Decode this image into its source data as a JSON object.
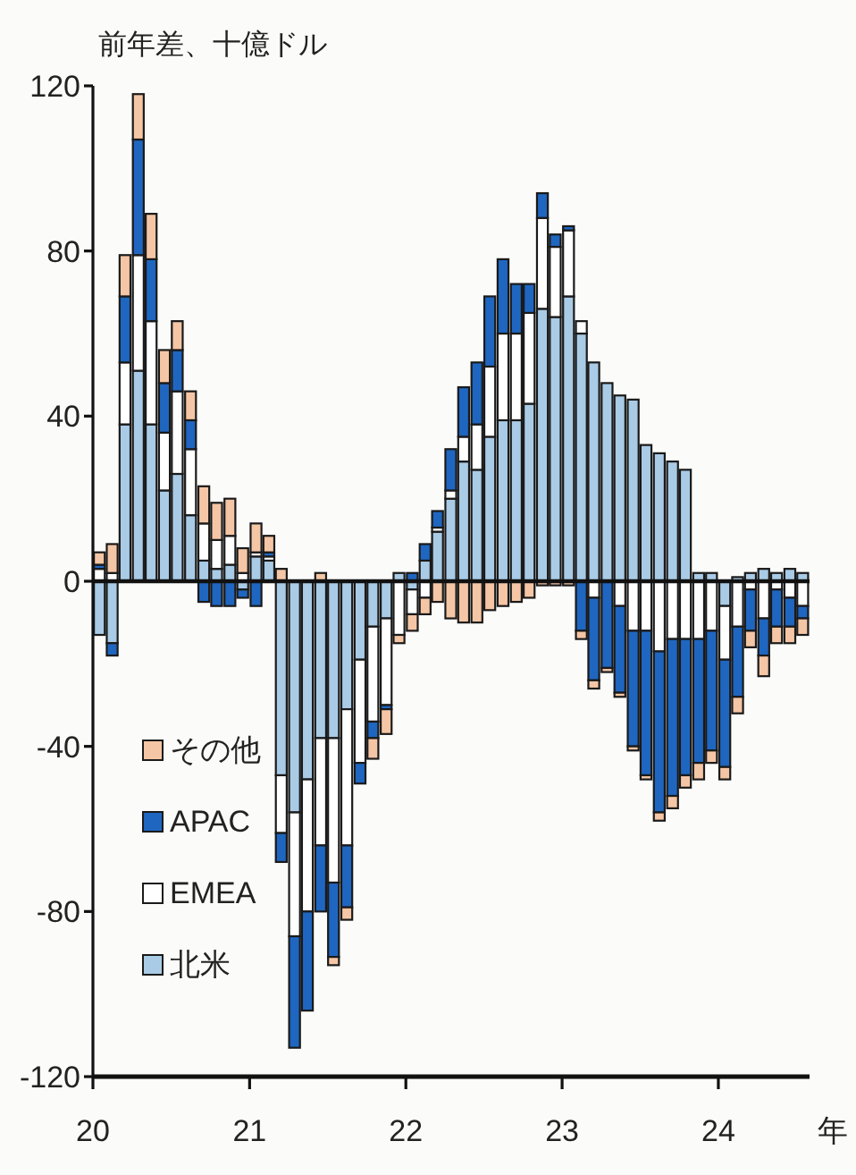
{
  "chart_data": {
    "type": "bar",
    "stacked": true,
    "ylabel": "前年差、十億ドル",
    "xlabel": "年",
    "x": [
      "2020-01-16",
      "2020-02-15",
      "2020-03-16",
      "2020-04-16",
      "2020-05-16",
      "2020-06-16",
      "2020-07-16",
      "2020-08-16",
      "2020-09-16",
      "2020-10-16",
      "2020-11-16",
      "2020-12-16",
      "2021-01-16",
      "2021-02-15",
      "2021-03-16",
      "2021-04-16",
      "2021-05-16",
      "2021-06-16",
      "2021-07-16",
      "2021-08-16",
      "2021-09-16",
      "2021-10-16",
      "2021-11-16",
      "2021-12-16",
      "2022-01-16",
      "2022-02-15",
      "2022-03-16",
      "2022-04-16",
      "2022-05-16",
      "2022-06-16",
      "2022-07-16",
      "2022-08-16",
      "2022-09-16",
      "2022-10-16",
      "2022-11-16",
      "2022-12-16",
      "2023-01-16",
      "2023-02-15",
      "2023-03-16",
      "2023-04-16",
      "2023-05-16",
      "2023-06-16",
      "2023-07-16",
      "2023-08-16",
      "2023-09-16",
      "2023-10-16",
      "2023-11-16",
      "2023-12-16",
      "2024-01-16",
      "2024-02-15",
      "2024-03-16",
      "2024-04-16",
      "2024-05-16",
      "2024-06-16",
      "2024-07-16"
    ],
    "series": [
      {
        "name": "北米",
        "color": "#a9cbe6",
        "values": [
          -13,
          -15,
          38,
          51,
          38,
          22,
          26,
          16,
          5,
          3,
          4,
          -2,
          6,
          5,
          -47,
          -56,
          -48,
          -38,
          -38,
          -31,
          -19,
          -11,
          -9,
          2,
          -2,
          5,
          12,
          20,
          29,
          27,
          35,
          39,
          39,
          43,
          66,
          64,
          69,
          60,
          53,
          48,
          45,
          44,
          33,
          31,
          29,
          27,
          2,
          2,
          -6,
          1,
          2,
          3,
          2,
          3,
          2
        ]
      },
      {
        "name": "EMEA",
        "color": "#ffffff",
        "values": [
          3,
          2,
          15,
          28,
          25,
          14,
          20,
          16,
          9,
          7,
          7,
          2,
          1,
          1,
          -14,
          -30,
          -32,
          -26,
          -35,
          -33,
          -25,
          -23,
          -21,
          -13,
          -6,
          -4,
          1,
          2,
          6,
          11,
          17,
          21,
          21,
          22,
          22,
          17,
          16,
          3,
          -4,
          0,
          -6,
          -12,
          -12,
          -17,
          -14,
          -14,
          -14,
          -12,
          -13,
          -11,
          -2,
          -9,
          -2,
          -4,
          -6
        ]
      },
      {
        "name": "APAC",
        "color": "#1f66c0",
        "values": [
          1,
          -3,
          16,
          28,
          15,
          12,
          10,
          7,
          -5,
          -6,
          -6,
          -2,
          -6,
          1,
          -7,
          -27,
          -24,
          -16,
          -18,
          -15,
          -5,
          -4,
          -1,
          0,
          2,
          4,
          4,
          10,
          12,
          15,
          17,
          18,
          12,
          7,
          6,
          3,
          1,
          -12,
          -20,
          -21,
          -21,
          -28,
          -35,
          -39,
          -38,
          -33,
          -30,
          -29,
          -26,
          -17,
          -10,
          -9,
          -9,
          -7,
          -3
        ]
      },
      {
        "name": "その他",
        "color": "#f5c6a5",
        "values": [
          3,
          7,
          10,
          11,
          11,
          8,
          7,
          7,
          9,
          9,
          9,
          6,
          7,
          4,
          3,
          0,
          0,
          2,
          -2,
          -3,
          0,
          -5,
          -6,
          -2,
          -4,
          -4,
          -5,
          -9,
          -10,
          -10,
          -7,
          -6,
          -5,
          -4,
          -1,
          -1,
          -1,
          -2,
          -2,
          -1,
          -1,
          -1,
          -1,
          -2,
          -3,
          -3,
          -4,
          -3,
          -3,
          -4,
          -4,
          -5,
          -4,
          -4,
          -4
        ]
      }
    ],
    "xlim": [
      "2020-01-01",
      "2024-08-01"
    ],
    "xticks": [
      {
        "value": "2020-01-01",
        "label": "20"
      },
      {
        "value": "2021-01-01",
        "label": "21"
      },
      {
        "value": "2022-01-01",
        "label": "22"
      },
      {
        "value": "2023-01-01",
        "label": "23"
      },
      {
        "value": "2024-01-01",
        "label": "24"
      }
    ],
    "ylim": [
      -120,
      120
    ],
    "yticks": [
      -120,
      -80,
      -40,
      0,
      40,
      80,
      120
    ],
    "ref_lines": [
      {
        "axis": "y",
        "value": 0
      }
    ],
    "legend": "bottom left",
    "grid": false
  }
}
